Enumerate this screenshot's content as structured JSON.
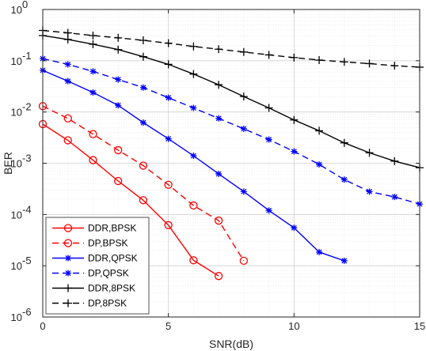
{
  "chart_data": {
    "type": "line",
    "title": "",
    "xlabel": "SNR(dB)",
    "ylabel": "BER",
    "xlim": [
      0,
      15
    ],
    "ylim": [
      1e-06,
      1
    ],
    "yscale": "log",
    "grid": true,
    "legend_position": "bottom-left",
    "x_ticks": [
      0,
      5,
      10,
      15
    ],
    "x_tick_labels": [
      "0",
      "5",
      "10",
      "15"
    ],
    "y_ticks": [
      1e-06,
      1e-05,
      0.0001,
      0.001,
      0.01,
      0.1,
      1
    ],
    "y_tick_labels": [
      {
        "base": "10",
        "exp": "-6"
      },
      {
        "base": "10",
        "exp": "-5"
      },
      {
        "base": "10",
        "exp": "-4"
      },
      {
        "base": "10",
        "exp": "-3"
      },
      {
        "base": "10",
        "exp": "-2"
      },
      {
        "base": "10",
        "exp": "-1"
      },
      {
        "base": "10",
        "exp": "0"
      }
    ],
    "series": [
      {
        "name": "DDR,BPSK",
        "color": "#ff0000",
        "dash": "solid",
        "marker": "circle",
        "x": [
          0,
          1,
          2,
          3,
          4,
          5,
          6,
          7
        ],
        "y": [
          0.0058,
          0.0028,
          0.00115,
          0.00045,
          0.00019,
          6.2e-05,
          1.28e-05,
          6.3e-06
        ]
      },
      {
        "name": "DP,BPSK",
        "color": "#ff0000",
        "dash": "dashed",
        "marker": "circle",
        "x": [
          0,
          1,
          2,
          3,
          4,
          5,
          6,
          7,
          8
        ],
        "y": [
          0.013,
          0.0075,
          0.0037,
          0.0018,
          0.0009,
          0.00038,
          0.00015,
          7.6e-05,
          1.25e-05
        ]
      },
      {
        "name": "DDR,QPSK",
        "color": "#0000ff",
        "dash": "solid",
        "marker": "star",
        "x": [
          0,
          1,
          2,
          3,
          4,
          5,
          6,
          7,
          8,
          9,
          10,
          11,
          12
        ],
        "y": [
          0.065,
          0.04,
          0.024,
          0.0135,
          0.0062,
          0.003,
          0.0014,
          0.00062,
          0.00028,
          0.00012,
          5.5e-05,
          1.85e-05,
          1.25e-05
        ]
      },
      {
        "name": "DP,QPSK",
        "color": "#0000ff",
        "dash": "dashed",
        "marker": "star",
        "x": [
          0,
          1,
          2,
          3,
          4,
          5,
          6,
          7,
          8,
          9,
          10,
          11,
          12,
          13,
          14,
          15
        ],
        "y": [
          0.11,
          0.085,
          0.062,
          0.043,
          0.03,
          0.019,
          0.012,
          0.0075,
          0.0047,
          0.0029,
          0.0017,
          0.00095,
          0.00048,
          0.00028,
          0.00022,
          0.00016
        ]
      },
      {
        "name": "DDR,8PSK",
        "color": "#000000",
        "dash": "solid",
        "marker": "plus",
        "x": [
          0,
          1,
          2,
          3,
          4,
          5,
          6,
          7,
          8,
          9,
          10,
          11,
          12,
          13,
          14,
          15
        ],
        "y": [
          0.31,
          0.26,
          0.21,
          0.165,
          0.12,
          0.085,
          0.055,
          0.034,
          0.02,
          0.012,
          0.007,
          0.0043,
          0.0025,
          0.0016,
          0.0011,
          0.00082
        ]
      },
      {
        "name": "DP,8PSK",
        "color": "#000000",
        "dash": "dashed",
        "marker": "plus",
        "x": [
          0,
          1,
          2,
          3,
          4,
          5,
          6,
          7,
          8,
          9,
          10,
          11,
          12,
          13,
          14,
          15
        ],
        "y": [
          0.39,
          0.35,
          0.31,
          0.28,
          0.25,
          0.22,
          0.19,
          0.168,
          0.148,
          0.13,
          0.115,
          0.103,
          0.095,
          0.088,
          0.08,
          0.075
        ]
      }
    ]
  }
}
